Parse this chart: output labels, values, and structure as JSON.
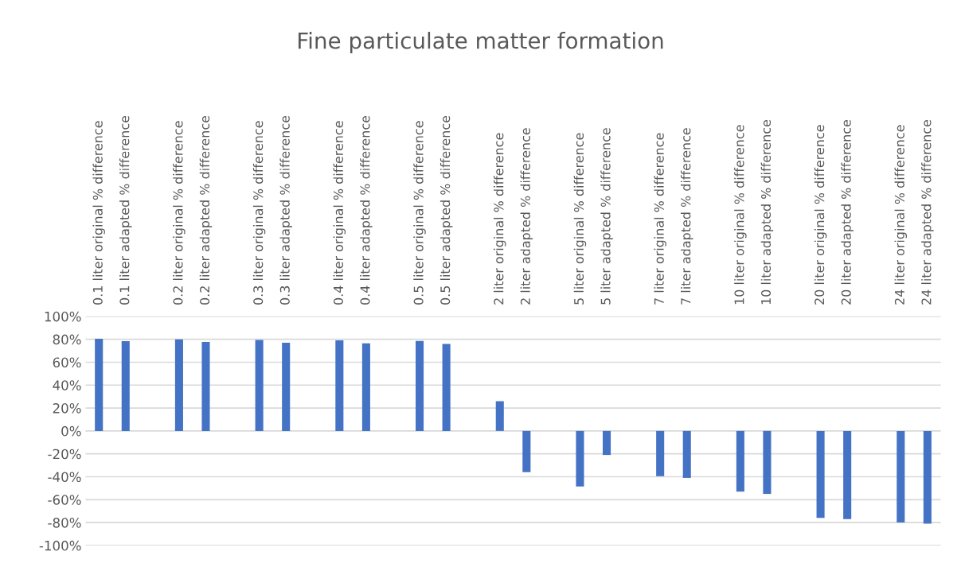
{
  "chart_data": {
    "type": "bar",
    "title": "Fine particulate matter formation",
    "categories": [
      "0.1 liter original % difference",
      "0.1 liter adapted % difference",
      null,
      "0.2 liter original % difference",
      "0.2 liter adapted % difference",
      null,
      "0.3 liter original % difference",
      "0.3 liter adapted % difference",
      null,
      "0.4 liter original % difference",
      "0.4 liter adapted % difference",
      null,
      "0.5 liter original % difference",
      "0.5 liter adapted % difference",
      null,
      "2 liter original % difference",
      "2 liter adapted % difference",
      null,
      "5 liter original % difference",
      "5 liter adapted % difference",
      null,
      "7 liter original % difference",
      "7 liter adapted % difference",
      null,
      "10 liter original % difference",
      "10 liter adapted % difference",
      null,
      "20 liter original % difference",
      "20 liter adapted % difference",
      null,
      "24 liter original % difference",
      "24 liter adapted % difference"
    ],
    "values": [
      80.5,
      78.4,
      null,
      80,
      77.6,
      null,
      79.5,
      77,
      null,
      79,
      76.5,
      null,
      78.6,
      76,
      null,
      26,
      -36,
      null,
      -48.5,
      -21,
      null,
      -39.5,
      -41,
      null,
      -53,
      -55,
      null,
      -76,
      -77,
      null,
      -80,
      -81
    ],
    "color": "#4472c4",
    "ylim": [
      -100,
      100
    ],
    "yticks": [
      {
        "value": -100,
        "label": "-100%"
      },
      {
        "value": -80,
        "label": "-80%"
      },
      {
        "value": -60,
        "label": "-60%"
      },
      {
        "value": -40,
        "label": "-40%"
      },
      {
        "value": -20,
        "label": "-20%"
      },
      {
        "value": 0,
        "label": "0%"
      },
      {
        "value": 20,
        "label": "20%"
      },
      {
        "value": 40,
        "label": "40%"
      },
      {
        "value": 60,
        "label": "60%"
      },
      {
        "value": 80,
        "label": "80%"
      },
      {
        "value": 100,
        "label": "100%"
      }
    ],
    "grid": "y"
  }
}
